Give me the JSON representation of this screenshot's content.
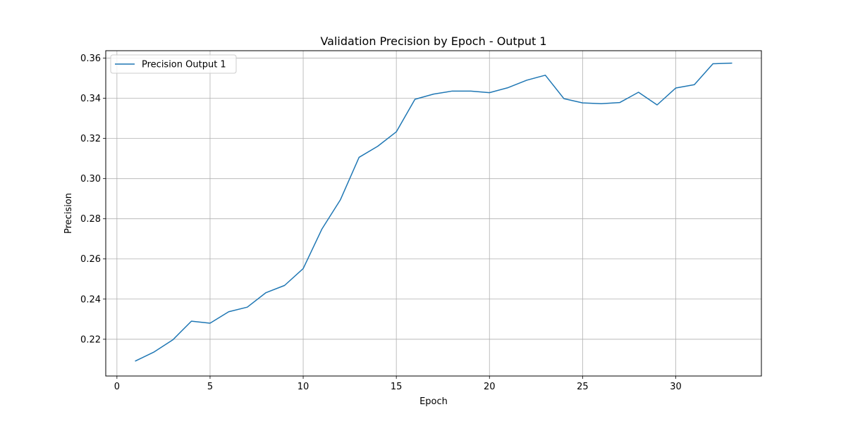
{
  "chart_data": {
    "type": "line",
    "title": "Validation Precision by Epoch - Output 1",
    "xlabel": "Epoch",
    "ylabel": "Precision",
    "xlim": [
      -0.6,
      34.6
    ],
    "ylim": [
      0.2017,
      0.3637
    ],
    "xticks": [
      0,
      5,
      10,
      15,
      20,
      25,
      30
    ],
    "yticks": [
      0.22,
      0.24,
      0.26,
      0.28,
      0.3,
      0.32,
      0.34,
      0.36
    ],
    "ytick_labels": [
      "0.22",
      "0.24",
      "0.26",
      "0.28",
      "0.30",
      "0.32",
      "0.34",
      "0.36"
    ],
    "grid": true,
    "legend_position": "upper-left",
    "x": [
      1,
      2,
      3,
      4,
      5,
      6,
      7,
      8,
      9,
      10,
      11,
      12,
      13,
      14,
      15,
      16,
      17,
      18,
      19,
      20,
      21,
      22,
      23,
      24,
      25,
      26,
      27,
      28,
      29,
      30,
      31,
      32,
      33
    ],
    "series": [
      {
        "name": "Precision Output 1",
        "color": "#1f77b4",
        "values": [
          0.2092,
          0.2137,
          0.2197,
          0.229,
          0.228,
          0.2337,
          0.236,
          0.2432,
          0.2468,
          0.2552,
          0.2748,
          0.2895,
          0.3106,
          0.3161,
          0.3233,
          0.3395,
          0.3421,
          0.3436,
          0.3436,
          0.3428,
          0.3453,
          0.349,
          0.3515,
          0.3398,
          0.3377,
          0.3373,
          0.3379,
          0.343,
          0.3367,
          0.3451,
          0.3468,
          0.3572,
          0.3575
        ]
      }
    ]
  }
}
